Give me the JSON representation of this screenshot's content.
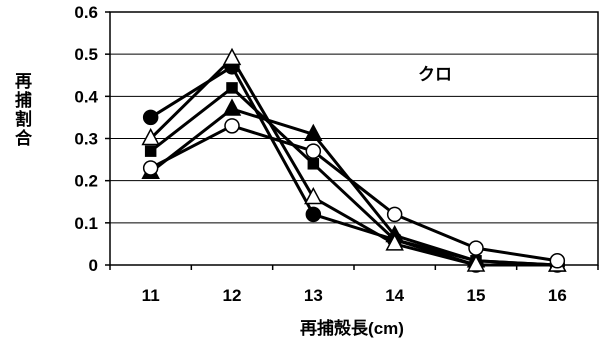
{
  "chart_data": {
    "type": "line",
    "title": "",
    "annotation": "クロ",
    "xlabel": "再捕殻長(cm)",
    "ylabel": "再捕割合",
    "categories": [
      "11",
      "12",
      "13",
      "14",
      "15",
      "16"
    ],
    "ylim": [
      0,
      0.6
    ],
    "yticks": [
      "0",
      "0.1",
      "0.2",
      "0.3",
      "0.4",
      "0.5",
      "0.6"
    ],
    "grid": true,
    "series": [
      {
        "marker": "filled-circle",
        "values": [
          0.35,
          0.47,
          0.12,
          0.06,
          0.0,
          0.0
        ]
      },
      {
        "marker": "filled-square",
        "values": [
          0.27,
          0.42,
          0.24,
          0.06,
          0.01,
          0.0
        ]
      },
      {
        "marker": "filled-triangle",
        "values": [
          0.22,
          0.37,
          0.31,
          0.07,
          0.01,
          0.0
        ]
      },
      {
        "marker": "open-triangle",
        "values": [
          0.3,
          0.49,
          0.16,
          0.05,
          0.0,
          0.0
        ]
      },
      {
        "marker": "open-circle",
        "values": [
          0.23,
          0.33,
          0.27,
          0.12,
          0.04,
          0.01
        ]
      }
    ]
  }
}
